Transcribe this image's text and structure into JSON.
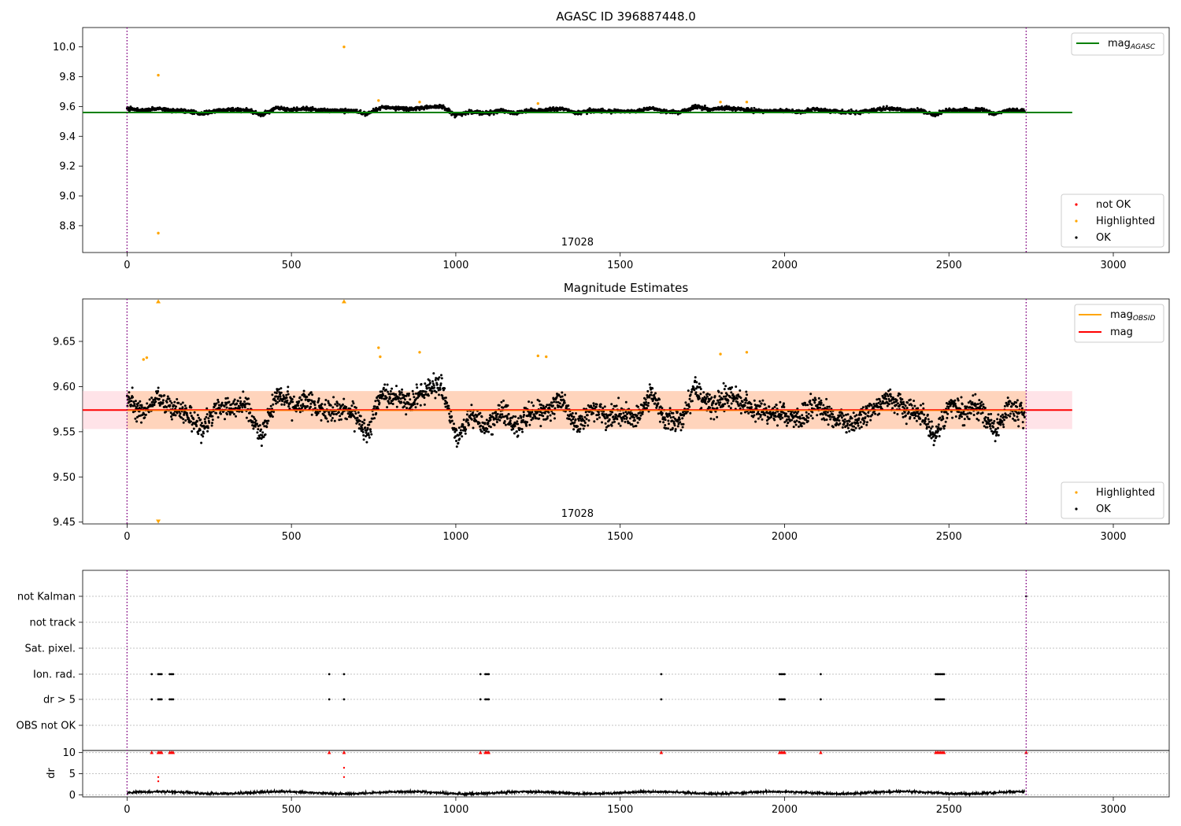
{
  "chart_data": [
    {
      "type": "scatter",
      "title": "AGASC ID 396887448.0",
      "xlabel": "",
      "ylabel": "",
      "xlim": [
        -135,
        3170
      ],
      "ylim": [
        8.62,
        10.13
      ],
      "x_ticks": [
        0,
        500,
        1000,
        1500,
        2000,
        2500,
        3000
      ],
      "y_ticks": [
        8.8,
        9.0,
        9.2,
        9.4,
        9.6,
        9.8,
        10.0
      ],
      "y_tick_labels": [
        "8.8",
        "9.0",
        "9.2",
        "9.4",
        "9.6",
        "9.8",
        "10.0"
      ],
      "obsid_label": "17028",
      "obsid_x": 1370,
      "obs_boundaries": [
        0,
        2735
      ],
      "reference_line": {
        "name": "mag_AGASC",
        "y": 9.56,
        "x_range": [
          -135,
          2875
        ],
        "color": "#008000"
      },
      "series": [
        {
          "name": "not OK",
          "color": "#ff0000",
          "points": []
        },
        {
          "name": "Highlighted",
          "color": "#ffa500",
          "points": [
            [
              95,
              9.81
            ],
            [
              95,
              8.75
            ],
            [
              660,
              10.0
            ],
            [
              765,
              9.64
            ],
            [
              890,
              9.63
            ],
            [
              1805,
              9.63
            ],
            [
              1885,
              9.63
            ],
            [
              1250,
              9.62
            ]
          ]
        },
        {
          "name": "OK",
          "color": "#000000",
          "n_points": 2700,
          "x_range": [
            0,
            2730
          ],
          "mean": 9.573,
          "scatter": 0.018
        }
      ],
      "legend_top": [
        {
          "label_main": "mag",
          "label_sub": "AGASC",
          "color": "#008000"
        }
      ],
      "legend_bottom": [
        {
          "label": "not OK",
          "color": "#ff0000"
        },
        {
          "label": "Highlighted",
          "color": "#ffa500"
        },
        {
          "label": "OK",
          "color": "#000000"
        }
      ]
    },
    {
      "type": "scatter",
      "title": "Magnitude Estimates",
      "xlabel": "",
      "ylabel": "",
      "xlim": [
        -135,
        3170
      ],
      "ylim": [
        9.448,
        9.697
      ],
      "x_ticks": [
        0,
        500,
        1000,
        1500,
        2000,
        2500,
        3000
      ],
      "y_ticks": [
        9.45,
        9.5,
        9.55,
        9.6,
        9.65
      ],
      "y_tick_labels": [
        "9.45",
        "9.50",
        "9.55",
        "9.60",
        "9.65"
      ],
      "obsid_label": "17028",
      "obsid_x": 1370,
      "obs_boundaries": [
        0,
        2735
      ],
      "mag_band": {
        "y_low": 9.553,
        "y_high": 9.595,
        "x_range": [
          -135,
          2875
        ],
        "color": "#ffc0cb"
      },
      "obsid_band": {
        "y_low": 9.553,
        "y_high": 9.595,
        "x_range": [
          -135,
          2735
        ],
        "color": "#ffcfb0"
      },
      "mag_line": {
        "name": "mag",
        "y": 9.574,
        "color": "#ff0000"
      },
      "obsid_line": {
        "name": "mag_OBSID",
        "y": 9.574,
        "color": "#ffa500"
      },
      "series": [
        {
          "name": "Highlighted",
          "color": "#ffa500",
          "points": [
            [
              765,
              9.643
            ],
            [
              770,
              9.633
            ],
            [
              890,
              9.638
            ],
            [
              1250,
              9.634
            ],
            [
              1275,
              9.633
            ],
            [
              1805,
              9.636
            ],
            [
              1885,
              9.638
            ],
            [
              50,
              9.63
            ],
            [
              60,
              9.632
            ]
          ]
        },
        {
          "name": "Highlighted (above range)",
          "color": "#ffa500",
          "marker": "triangle-up",
          "points": [
            [
              95,
              9.694
            ],
            [
              660,
              9.694
            ]
          ]
        },
        {
          "name": "Highlighted (below range)",
          "color": "#ffa500",
          "marker": "triangle-down",
          "points": [
            [
              95,
              9.451
            ]
          ]
        },
        {
          "name": "OK",
          "color": "#000000",
          "n_points": 2700,
          "x_range": [
            0,
            2730
          ],
          "mean": 9.573,
          "scatter": 0.018
        }
      ],
      "legend_top": [
        {
          "label_main": "mag",
          "label_sub": "OBSID",
          "color": "#ffa500"
        },
        {
          "label_main": "mag",
          "label_sub": "",
          "color": "#ff0000"
        }
      ],
      "legend_bottom": [
        {
          "label": "Highlighted",
          "color": "#ffa500"
        },
        {
          "label": "OK",
          "color": "#000000"
        }
      ]
    },
    {
      "type": "scatter",
      "title": "",
      "xlabel": "",
      "ylabel": "",
      "xlim": [
        -135,
        3170
      ],
      "obs_boundaries": [
        0,
        2735
      ],
      "flag_rows": [
        "not Kalman",
        "not track",
        "Sat. pixel.",
        "Ion. rad.",
        "dr > 5",
        "OBS not OK"
      ],
      "flag_events": {
        "Ion. rad.": [
          75,
          95,
          100,
          105,
          130,
          135,
          140,
          615,
          660,
          1075,
          1090,
          1095,
          1100,
          1625,
          1985,
          1990,
          1995,
          2000,
          2110,
          2460,
          2465,
          2470,
          2475,
          2480,
          2485
        ],
        "dr > 5": [
          75,
          95,
          100,
          105,
          130,
          135,
          140,
          615,
          660,
          1075,
          1090,
          1095,
          1100,
          1625,
          1985,
          1990,
          1995,
          2000,
          2110,
          2460,
          2465,
          2470,
          2475,
          2480,
          2485
        ],
        "not Kalman": [
          2735
        ]
      },
      "dr_panel": {
        "ylabel": "dr",
        "ylim": [
          -0.5,
          10.5
        ],
        "y_ticks": [
          0,
          5,
          10
        ],
        "y_tick_labels": [
          "0",
          "5",
          "10"
        ],
        "clipped_at": 10,
        "clipped_points": [
          75,
          95,
          100,
          105,
          130,
          135,
          140,
          615,
          660,
          1075,
          1090,
          1095,
          1100,
          1625,
          1985,
          1990,
          1995,
          2000,
          2110,
          2460,
          2465,
          2470,
          2475,
          2480,
          2485,
          2735
        ],
        "extra_points": [
          [
            95,
            4.2
          ],
          [
            95,
            3.2
          ],
          [
            660,
            6.4
          ],
          [
            660,
            4.2
          ]
        ],
        "baseline_mean": 0.5,
        "baseline_scatter": 0.25,
        "n_points": 2700
      }
    }
  ]
}
